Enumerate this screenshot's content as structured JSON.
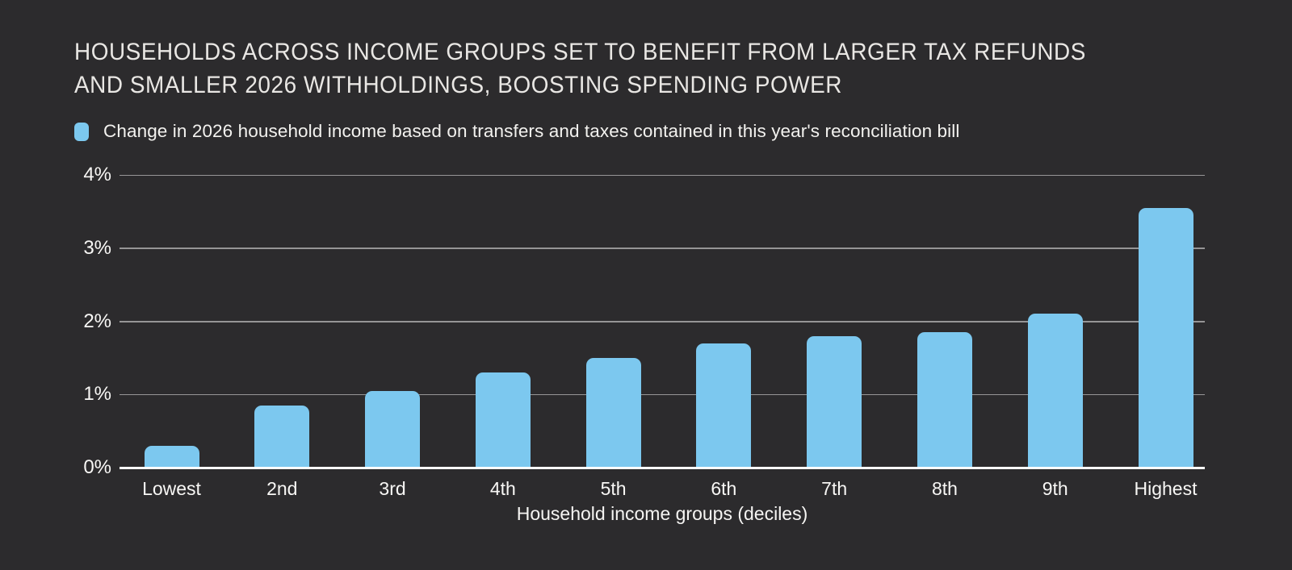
{
  "header": {
    "title_line1": "HOUSEHOLDS ACROSS INCOME GROUPS SET TO BENEFIT FROM LARGER TAX REFUNDS",
    "title_line2": "AND SMALLER 2026 WITHHOLDINGS, BOOSTING SPENDING POWER"
  },
  "legend": {
    "label": "Change in 2026 household income based on transfers and taxes contained in this year's reconciliation bill"
  },
  "chart_data": {
    "type": "bar",
    "title": "HOUSEHOLDS ACROSS INCOME GROUPS SET TO BENEFIT FROM LARGER TAX REFUNDS AND SMALLER 2026 WITHHOLDINGS, BOOSTING SPENDING POWER",
    "series_label": "Change in 2026 household income based on transfers and taxes contained in this year's reconciliation bill",
    "categories": [
      "Lowest",
      "2nd",
      "3rd",
      "4th",
      "5th",
      "6th",
      "7th",
      "8th",
      "9th",
      "Highest"
    ],
    "values": [
      0.3,
      0.85,
      1.05,
      1.3,
      1.5,
      1.7,
      1.8,
      1.85,
      2.1,
      3.55
    ],
    "unit": "%",
    "xlabel": "Household income groups (deciles)",
    "ylabel": "",
    "ylim": [
      0,
      4
    ],
    "yticks": [
      {
        "label": "0%",
        "value": 0
      },
      {
        "label": "1%",
        "value": 1
      },
      {
        "label": "2%",
        "value": 2
      },
      {
        "label": "3%",
        "value": 3
      },
      {
        "label": "4%",
        "value": 4
      }
    ],
    "grid": "horizontal",
    "legend_position": "top-left",
    "bar_color": "#7cc8ef",
    "background_color": "#2c2b2d",
    "text_color": "#f8f7f5"
  }
}
